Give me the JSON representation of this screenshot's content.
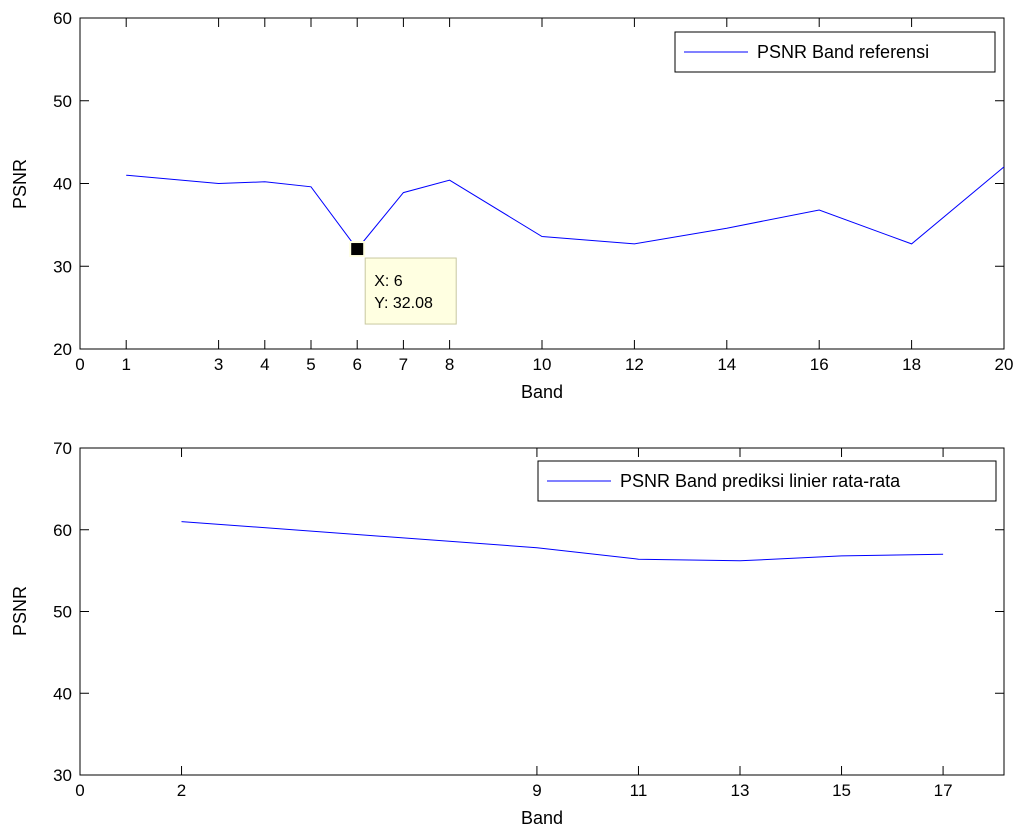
{
  "chart_data": [
    {
      "type": "line",
      "xlabel": "Band",
      "ylabel": "PSNR",
      "xlim": [
        0,
        20
      ],
      "ylim": [
        20,
        60
      ],
      "xticks": [
        0,
        1,
        3,
        4,
        5,
        6,
        7,
        8,
        10,
        12,
        14,
        16,
        18,
        20
      ],
      "yticks": [
        20,
        30,
        40,
        50,
        60
      ],
      "grid": false,
      "legend_position": "top-right",
      "series": [
        {
          "name": "PSNR Band referensi",
          "color": "#0000ff",
          "x": [
            1,
            3,
            4,
            5,
            6,
            7,
            8,
            10,
            12,
            14,
            16,
            18,
            20
          ],
          "y": [
            41.0,
            40.0,
            40.2,
            39.6,
            32.08,
            38.9,
            40.4,
            33.6,
            32.7,
            34.6,
            36.8,
            32.7,
            42.0
          ]
        }
      ],
      "datatip": {
        "x": 6,
        "y": 32.08,
        "x_text": "X: 6",
        "y_text": "Y: 32.08"
      }
    },
    {
      "type": "line",
      "xlabel": "Band",
      "ylabel": "PSNR",
      "xlim": [
        0,
        18.2
      ],
      "ylim": [
        30,
        70
      ],
      "xticks": [
        0,
        2,
        9,
        11,
        13,
        15,
        17
      ],
      "yticks": [
        30,
        40,
        50,
        60,
        70
      ],
      "grid": false,
      "legend_position": "top-right",
      "series": [
        {
          "name": "PSNR Band prediksi linier rata-rata",
          "color": "#0000ff",
          "x": [
            2,
            9,
            11,
            13,
            15,
            17
          ],
          "y": [
            61.0,
            57.8,
            56.4,
            56.2,
            56.8,
            57.0
          ]
        }
      ]
    }
  ]
}
